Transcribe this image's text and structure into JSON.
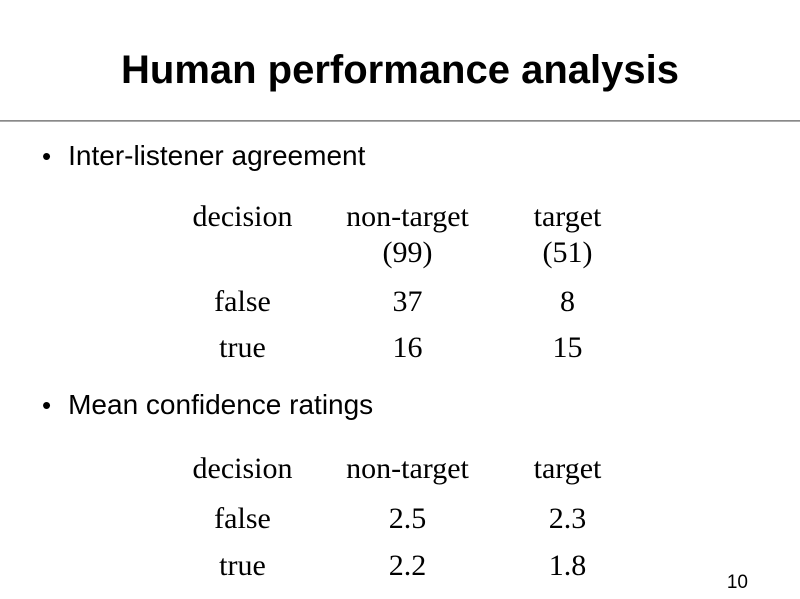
{
  "slide": {
    "title": "Human performance analysis",
    "bullet_char": "•",
    "page_number": "10"
  },
  "bullets": [
    {
      "label": "Inter-listener agreement"
    },
    {
      "label": "Mean confidence ratings"
    }
  ],
  "agreement_table": {
    "headers": {
      "decision": "decision",
      "non_target": "non-target",
      "non_target_count": "(99)",
      "target": "target",
      "target_count": "(51)"
    },
    "rows": [
      {
        "decision": "false",
        "non_target": "37",
        "target": "8"
      },
      {
        "decision": "true",
        "non_target": "16",
        "target": "15"
      }
    ]
  },
  "confidence_table": {
    "headers": {
      "decision": "decision",
      "non_target": "non-target",
      "target": "target"
    },
    "rows": [
      {
        "decision": "false",
        "non_target": "2.5",
        "target": "2.3"
      },
      {
        "decision": "true",
        "non_target": "2.2",
        "target": "1.8"
      }
    ]
  }
}
